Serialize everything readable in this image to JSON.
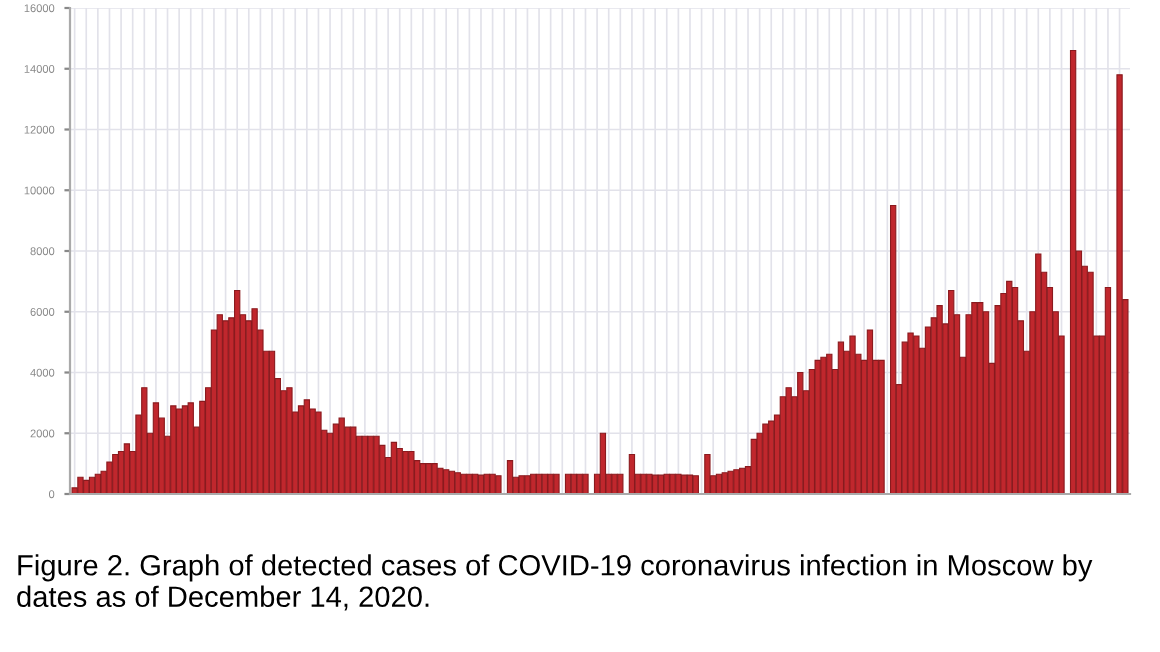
{
  "chart_data": {
    "type": "bar",
    "annotations": [
      "Figure 2. Graph of detected cases of COVID-19 coronavirus infection in Moscow by dates as of December 14, 2020."
    ],
    "values": [
      200,
      550,
      450,
      550,
      650,
      750,
      1050,
      1300,
      1400,
      1650,
      1400,
      2600,
      3500,
      2000,
      3000,
      2500,
      1900,
      2900,
      2800,
      2900,
      3000,
      2200,
      3050,
      3500,
      5400,
      5900,
      5700,
      5800,
      6700,
      5900,
      5700,
      6100,
      5400,
      4700,
      4700,
      3800,
      3400,
      3500,
      2700,
      2900,
      3100,
      2800,
      2700,
      2100,
      2000,
      2300,
      2500,
      2200,
      2200,
      1900,
      1900,
      1900,
      1900,
      1600,
      1200,
      1700,
      1500,
      1400,
      1400,
      1100,
      1000,
      1000,
      1000,
      850,
      800,
      750,
      700,
      650,
      650,
      650,
      620,
      650,
      650,
      600,
      null,
      1100,
      550,
      600,
      600,
      650,
      650,
      650,
      650,
      650,
      null,
      650,
      650,
      650,
      650,
      null,
      650,
      2000,
      650,
      650,
      650,
      null,
      1300,
      650,
      650,
      650,
      620,
      620,
      650,
      650,
      650,
      620,
      620,
      600,
      null,
      1300,
      600,
      650,
      700,
      750,
      800,
      850,
      900,
      1800,
      2000,
      2300,
      2400,
      2600,
      3200,
      3500,
      3200,
      4000,
      3400,
      4100,
      4400,
      4500,
      4600,
      4100,
      5000,
      4700,
      5200,
      4600,
      4400,
      5400,
      4400,
      4400,
      null,
      9500,
      3600,
      5000,
      5300,
      5200,
      4800,
      5500,
      5800,
      6200,
      5600,
      6700,
      5900,
      4500,
      5900,
      6300,
      6300,
      6000,
      4300,
      6200,
      6600,
      7000,
      6800,
      5700,
      4700,
      6000,
      7900,
      7300,
      6800,
      6000,
      5200,
      null,
      14600,
      8000,
      7500,
      7300,
      5200,
      5200,
      6800,
      null,
      13800,
      6400
    ],
    "color": "#c0272d",
    "ylim": [
      0,
      16000
    ],
    "yticks": [
      0,
      2000,
      4000,
      6000,
      8000,
      10000,
      12000,
      14000,
      16000
    ],
    "grid": true
  }
}
